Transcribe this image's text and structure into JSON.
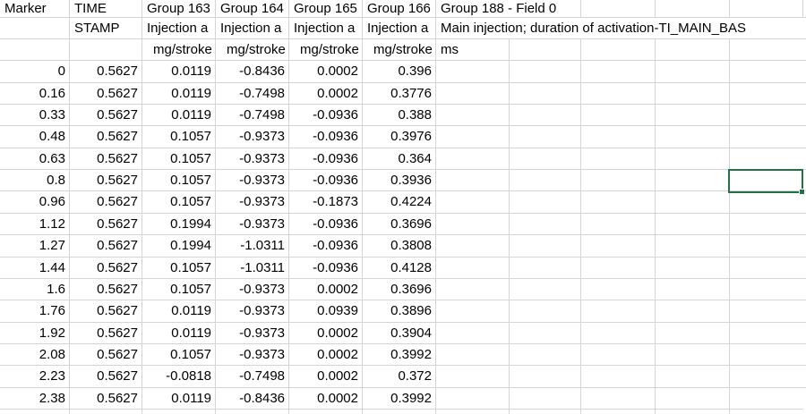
{
  "colors": {
    "background": "#ffffff",
    "grid_line": "#d4d4d4",
    "text": "#000000",
    "selection_border": "#217346"
  },
  "header": {
    "row1": {
      "marker": "Marker",
      "time": "TIME",
      "group163": "Group 163",
      "group164": "Group 164",
      "group165": "Group 165",
      "group166": "Group 166",
      "group188": "Group 188 - Field 0"
    },
    "row2": {
      "stamp": "STAMP",
      "desc163": "Injection a",
      "desc164": "Injection a",
      "desc165": "Injection a",
      "desc166": "Injection a",
      "desc188": "Main injection; duration of activation-TI_MAIN_BAS"
    },
    "row3": {
      "unit163": "mg/stroke",
      "unit164": "mg/stroke",
      "unit165": "mg/stroke",
      "unit166": "mg/stroke",
      "unit188": "ms"
    }
  },
  "rows": [
    [
      "0",
      "0.5627",
      "0.0119",
      "-0.8436",
      "0.0002",
      "0.396"
    ],
    [
      "0.16",
      "0.5627",
      "0.0119",
      "-0.7498",
      "0.0002",
      "0.3776"
    ],
    [
      "0.33",
      "0.5627",
      "0.0119",
      "-0.7498",
      "-0.0936",
      "0.388"
    ],
    [
      "0.48",
      "0.5627",
      "0.1057",
      "-0.9373",
      "-0.0936",
      "0.3976"
    ],
    [
      "0.63",
      "0.5627",
      "0.1057",
      "-0.9373",
      "-0.0936",
      "0.364"
    ],
    [
      "0.8",
      "0.5627",
      "0.1057",
      "-0.9373",
      "-0.0936",
      "0.3936"
    ],
    [
      "0.96",
      "0.5627",
      "0.1057",
      "-0.9373",
      "-0.1873",
      "0.4224"
    ],
    [
      "1.12",
      "0.5627",
      "0.1994",
      "-0.9373",
      "-0.0936",
      "0.3696"
    ],
    [
      "1.27",
      "0.5627",
      "0.1994",
      "-1.0311",
      "-0.0936",
      "0.3808"
    ],
    [
      "1.44",
      "0.5627",
      "0.1057",
      "-1.0311",
      "-0.0936",
      "0.4128"
    ],
    [
      "1.6",
      "0.5627",
      "0.1057",
      "-0.9373",
      "0.0002",
      "0.3696"
    ],
    [
      "1.76",
      "0.5627",
      "0.0119",
      "-0.9373",
      "0.0939",
      "0.3896"
    ],
    [
      "1.92",
      "0.5627",
      "0.0119",
      "-0.9373",
      "0.0002",
      "0.3904"
    ],
    [
      "2.08",
      "0.5627",
      "0.1057",
      "-0.9373",
      "0.0002",
      "0.3992"
    ],
    [
      "2.23",
      "0.5627",
      "-0.0818",
      "-0.7498",
      "0.0002",
      "0.372"
    ],
    [
      "2.38",
      "0.5627",
      "0.0119",
      "-0.8436",
      "0.0002",
      "0.3992"
    ]
  ],
  "selection": {
    "row_time_label": "0.8",
    "value": ""
  }
}
